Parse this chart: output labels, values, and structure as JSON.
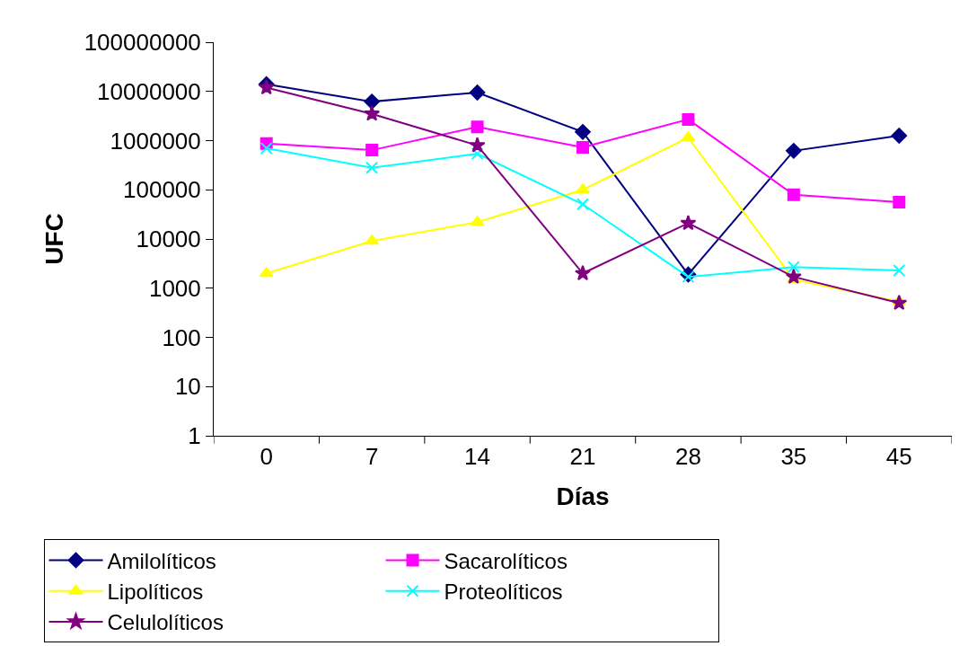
{
  "chart_data": {
    "type": "line",
    "xlabel": "Días",
    "ylabel": "UFC",
    "categories": [
      "0",
      "7",
      "14",
      "21",
      "28",
      "35",
      "45"
    ],
    "log": "y",
    "ylim": [
      1,
      100000000
    ],
    "yticks": [
      1,
      10,
      100,
      1000,
      10000,
      100000,
      1000000,
      10000000,
      100000000
    ],
    "grid": false,
    "legend": "bottom",
    "series": [
      {
        "name": "Amilolíticos",
        "color": "#000080",
        "marker": "diamond",
        "values": [
          14000000,
          6200000,
          9500000,
          1500000,
          1900,
          620000,
          1260000
        ]
      },
      {
        "name": "Sacarolíticos",
        "color": "#ff00ff",
        "marker": "square",
        "values": [
          870000,
          640000,
          1900000,
          730000,
          2700000,
          79000,
          56000
        ]
      },
      {
        "name": "Lipolíticos",
        "color": "#ffff00",
        "marker": "triangle",
        "values": [
          2000,
          9100,
          22000,
          100000,
          1150000,
          1500,
          530
        ]
      },
      {
        "name": "Proteolíticos",
        "color": "#00ffff",
        "marker": "cross",
        "values": [
          700000,
          280000,
          540000,
          51000,
          1700,
          2700,
          2300
        ]
      },
      {
        "name": "Celulolíticos",
        "color": "#800080",
        "marker": "star",
        "values": [
          12000000,
          3500000,
          800000,
          2000,
          21000,
          1700,
          500
        ]
      }
    ]
  }
}
